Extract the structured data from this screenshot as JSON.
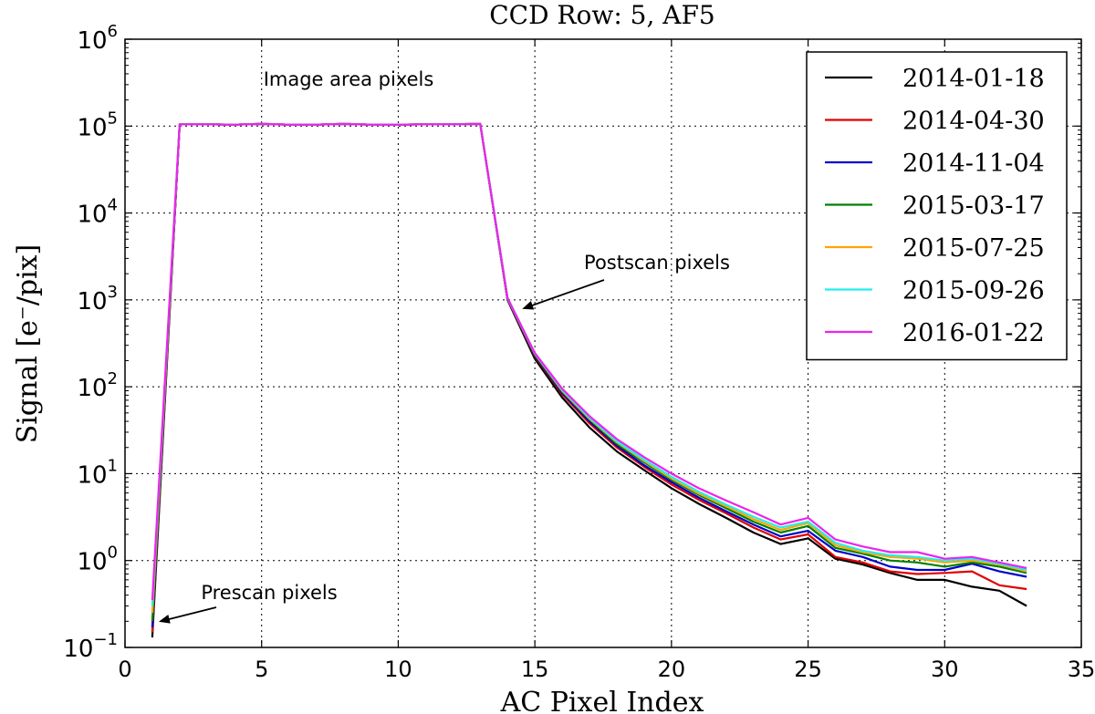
{
  "chart_data": {
    "type": "line",
    "title": "CCD Row: 5, AF5",
    "xlabel": "AC Pixel Index",
    "ylabel": "Signal [e⁻/pix]",
    "xlim": [
      0,
      35
    ],
    "ylim": [
      0.1,
      1000000
    ],
    "yscale": "log",
    "grid": true,
    "legend_position": "top-right",
    "x_ticks": [
      "0",
      "5",
      "10",
      "15",
      "20",
      "25",
      "30",
      "35"
    ],
    "y_ticks": [
      {
        "base": "10",
        "exp": "−1"
      },
      {
        "base": "10",
        "exp": "0"
      },
      {
        "base": "10",
        "exp": "1"
      },
      {
        "base": "10",
        "exp": "2"
      },
      {
        "base": "10",
        "exp": "3"
      },
      {
        "base": "10",
        "exp": "4"
      },
      {
        "base": "10",
        "exp": "5"
      },
      {
        "base": "10",
        "exp": "6"
      }
    ],
    "annotations": [
      {
        "text": "Image area pixels"
      },
      {
        "text": "Postscan pixels",
        "arrow_to": [
          14.6,
          800
        ]
      },
      {
        "text": "Prescan pixels",
        "arrow_to": [
          1.3,
          0.2
        ]
      }
    ],
    "x": [
      1,
      2,
      3,
      4,
      5,
      6,
      7,
      8,
      9,
      10,
      11,
      12,
      13,
      14,
      15,
      16,
      17,
      18,
      19,
      20,
      21,
      22,
      23,
      24,
      25,
      26,
      27,
      28,
      29,
      30,
      31,
      32,
      33
    ],
    "series": [
      {
        "name": "2014-01-18",
        "color": "#000000",
        "values": [
          0.13,
          105000,
          105000,
          104000,
          106000,
          104000,
          104000,
          106000,
          104000,
          104000,
          105000,
          105000,
          106000,
          1000,
          210,
          75,
          34,
          18,
          11,
          6.8,
          4.5,
          3.1,
          2.1,
          1.55,
          1.8,
          1.05,
          0.9,
          0.72,
          0.6,
          0.6,
          0.5,
          0.45,
          0.3
        ]
      },
      {
        "name": "2014-04-30",
        "color": "#e00000",
        "values": [
          0.15,
          105000,
          105000,
          104000,
          106000,
          104000,
          104000,
          106000,
          104000,
          104000,
          105000,
          105000,
          106000,
          1010,
          225,
          82,
          38,
          20,
          12,
          7.5,
          5.0,
          3.5,
          2.4,
          1.75,
          2.0,
          1.1,
          0.95,
          0.75,
          0.7,
          0.72,
          0.75,
          0.52,
          0.47
        ]
      },
      {
        "name": "2014-11-04",
        "color": "#0000cc",
        "values": [
          0.17,
          105000,
          105000,
          104000,
          106000,
          104000,
          104000,
          106000,
          104000,
          104000,
          105000,
          105000,
          106000,
          1020,
          230,
          85,
          40,
          21,
          12.5,
          8.0,
          5.3,
          3.7,
          2.6,
          1.9,
          2.2,
          1.3,
          1.1,
          0.85,
          0.78,
          0.78,
          0.92,
          0.75,
          0.65
        ]
      },
      {
        "name": "2015-03-17",
        "color": "#008000",
        "values": [
          0.2,
          105000,
          105000,
          104000,
          106000,
          104000,
          104000,
          106000,
          104000,
          104000,
          105000,
          105000,
          106000,
          1030,
          235,
          88,
          42,
          22,
          13.5,
          8.5,
          5.7,
          4.0,
          2.8,
          2.1,
          2.5,
          1.4,
          1.2,
          1.0,
          0.95,
          0.85,
          0.95,
          0.85,
          0.72
        ]
      },
      {
        "name": "2015-07-25",
        "color": "#ffa500",
        "values": [
          0.25,
          105000,
          105000,
          104000,
          106000,
          104000,
          104000,
          106000,
          104000,
          104000,
          105000,
          105000,
          106000,
          1040,
          240,
          90,
          43,
          23,
          14,
          8.8,
          5.9,
          4.2,
          3.0,
          2.25,
          2.7,
          1.5,
          1.25,
          1.1,
          1.05,
          0.95,
          1.0,
          0.9,
          0.75
        ]
      },
      {
        "name": "2015-09-26",
        "color": "#22eeee",
        "values": [
          0.3,
          105000,
          105000,
          104000,
          106000,
          104000,
          104000,
          106000,
          104000,
          104000,
          105000,
          105000,
          106000,
          1045,
          242,
          92,
          44,
          23.5,
          14.5,
          9.2,
          6.2,
          4.4,
          3.2,
          2.4,
          2.8,
          1.6,
          1.3,
          1.15,
          1.1,
          1.0,
          1.05,
          0.92,
          0.78
        ]
      },
      {
        "name": "2016-01-22",
        "color": "#ee22ee",
        "values": [
          0.35,
          105000,
          105000,
          104000,
          106000,
          104000,
          104000,
          106000,
          104000,
          104000,
          105000,
          105000,
          106000,
          1050,
          245,
          95,
          46,
          25,
          15.5,
          10,
          6.8,
          4.9,
          3.6,
          2.6,
          3.1,
          1.75,
          1.45,
          1.25,
          1.25,
          1.05,
          1.1,
          0.95,
          0.82
        ]
      }
    ]
  }
}
